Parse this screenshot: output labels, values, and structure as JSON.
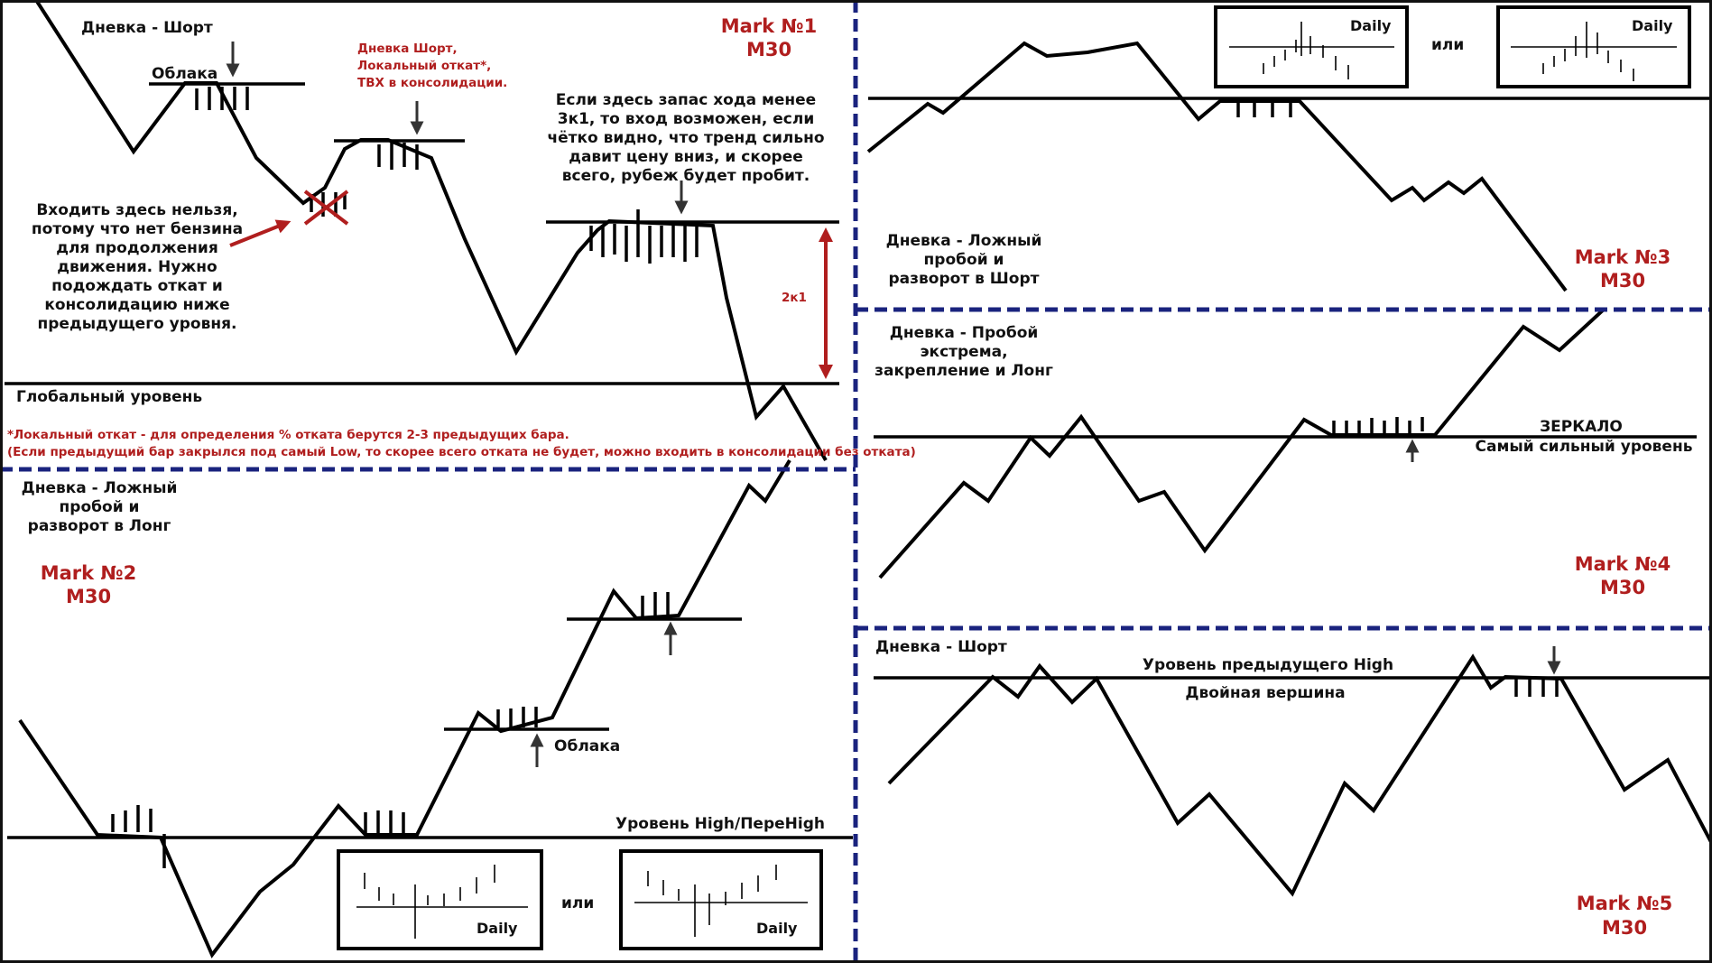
{
  "colors": {
    "accent_red": "#b01e1e",
    "separator_blue": "#1a237e",
    "line_black": "#000000"
  },
  "panel1": {
    "mark": "Mark №1",
    "timeframe": "M30",
    "title": "Дневка - Шорт",
    "clouds": "Облака",
    "local_note": [
      "Дневка Шорт,",
      "Локальный откат*,",
      "ТВХ в консолидации."
    ],
    "forbidden_note": [
      "Входить здесь нельзя,",
      "потому что нет бензина",
      "для продолжения",
      "движения. Нужно",
      "подождать откат и",
      "консолидацию ниже",
      "предыдущего уровня."
    ],
    "reserve_note": [
      "Если здесь запас хода менее",
      "3к1, то вход возможен, если",
      "чётко видно, что тренд сильно",
      "давит цену вниз, и скорее",
      "всего, рубеж будет пробит."
    ],
    "ratio": "2к1",
    "global_level": "Глобальный уровень",
    "footnote1": "*Локальный откат - для определения % отката берутся 2-3 предыдущих бара.",
    "footnote2": "(Если предыдущий бар закрылся под самый Low, то скорее всего отката не будет, можно входить в консолидации без отката)"
  },
  "panel2": {
    "mark": "Mark №2",
    "timeframe": "M30",
    "title": [
      "Дневка - Ложный",
      "пробой и",
      "разворот в Лонг"
    ],
    "clouds": "Облака",
    "level": "Уровень High/ПереHigh",
    "or": "или",
    "daily1": "Daily",
    "daily2": "Daily"
  },
  "panel3": {
    "mark": "Mark №3",
    "timeframe": "M30",
    "title": [
      "Дневка - Ложный",
      "пробой и",
      "разворот в Шорт"
    ],
    "or": "или",
    "daily1": "Daily",
    "daily2": "Daily"
  },
  "panel4": {
    "mark": "Mark №4",
    "timeframe": "M30",
    "title": [
      "Дневка - Пробой",
      "экстрема,",
      "закрепление и Лонг"
    ],
    "mirror": "ЗЕРКАЛО",
    "strongest": "Самый сильный уровень"
  },
  "panel5": {
    "mark": "Mark №5",
    "timeframe": "M30",
    "title": "Дневка - Шорт",
    "prev_high": "Уровень предыдущего High",
    "double_top": "Двойная вершина"
  }
}
